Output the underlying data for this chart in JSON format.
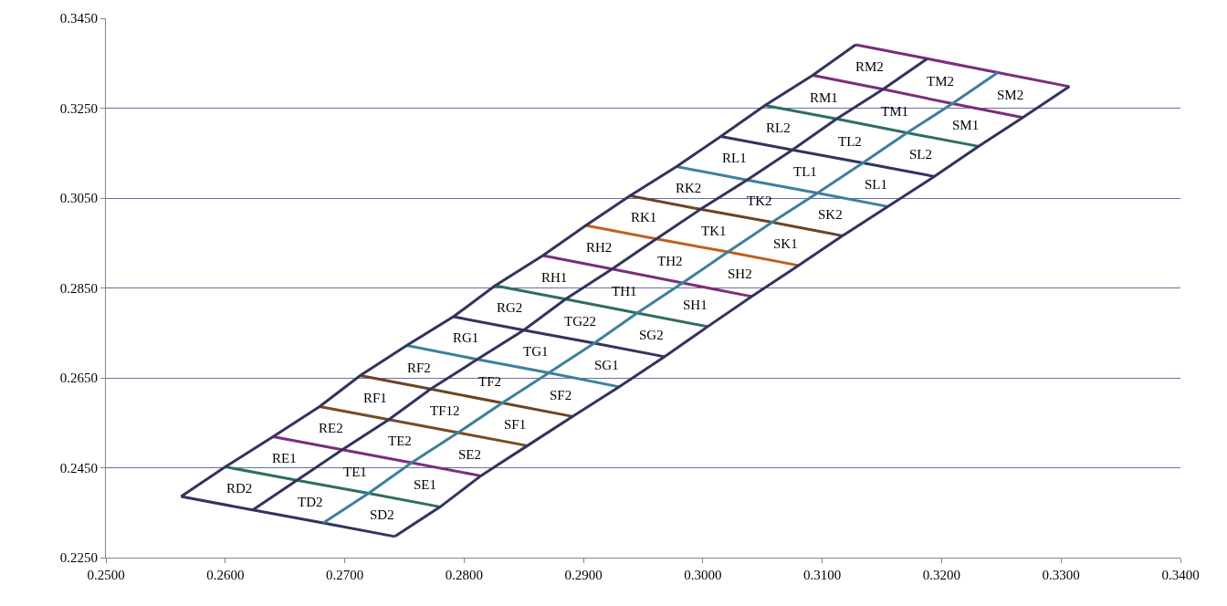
{
  "chart_data": {
    "type": "line",
    "xlim": [
      0.25,
      0.34
    ],
    "ylim": [
      0.225,
      0.345
    ],
    "xticks": [
      {
        "value": 0.25,
        "label": "0.2500"
      },
      {
        "value": 0.26,
        "label": "0.2600"
      },
      {
        "value": 0.27,
        "label": "0.2700"
      },
      {
        "value": 0.28,
        "label": "0.2800"
      },
      {
        "value": 0.29,
        "label": "0.2900"
      },
      {
        "value": 0.3,
        "label": "0.3000"
      },
      {
        "value": 0.31,
        "label": "0.3100"
      },
      {
        "value": 0.32,
        "label": "0.3200"
      },
      {
        "value": 0.33,
        "label": "0.3300"
      },
      {
        "value": 0.34,
        "label": "0.3400"
      }
    ],
    "yticks": [
      {
        "value": 0.225,
        "label": "0.2250"
      },
      {
        "value": 0.245,
        "label": "0.2450"
      },
      {
        "value": 0.265,
        "label": "0.2650"
      },
      {
        "value": 0.285,
        "label": "0.2850"
      },
      {
        "value": 0.305,
        "label": "0.3050"
      },
      {
        "value": 0.325,
        "label": "0.3250"
      },
      {
        "value": 0.345,
        "label": "0.3450"
      }
    ],
    "grid": "y",
    "marker": "none",
    "line_style": "solid",
    "series": [
      {
        "color": "#33335f",
        "x": [
          0.2563,
          0.2623,
          0.2682,
          0.2742
        ],
        "values": [
          0.2386,
          0.2356,
          0.2327,
          0.2297
        ]
      },
      {
        "color": "#2e6e64",
        "x": [
          0.26,
          0.266,
          0.272,
          0.278
        ],
        "values": [
          0.2452,
          0.2422,
          0.2393,
          0.2363
        ]
      },
      {
        "color": "#7b2e7b",
        "x": [
          0.264,
          0.2698,
          0.2756,
          0.2814
        ],
        "values": [
          0.2519,
          0.249,
          0.2461,
          0.2432
        ]
      },
      {
        "color": "#7b4a22",
        "x": [
          0.2679,
          0.2737,
          0.2795,
          0.2853
        ],
        "values": [
          0.2586,
          0.2557,
          0.2528,
          0.2499
        ]
      },
      {
        "color": "#6b4425",
        "x": [
          0.2713,
          0.2772,
          0.2832,
          0.2891
        ],
        "values": [
          0.2655,
          0.2625,
          0.2594,
          0.2564
        ]
      },
      {
        "color": "#3f7f9f",
        "x": [
          0.2752,
          0.2811,
          0.2871,
          0.293
        ],
        "values": [
          0.2722,
          0.2691,
          0.2661,
          0.263
        ]
      },
      {
        "color": "#33335f",
        "x": [
          0.2791,
          0.285,
          0.2909,
          0.2968
        ],
        "values": [
          0.2786,
          0.2756,
          0.2727,
          0.2697
        ]
      },
      {
        "color": "#2e6e64",
        "x": [
          0.2826,
          0.2885,
          0.2945,
          0.3004
        ],
        "values": [
          0.2855,
          0.2825,
          0.2794,
          0.2764
        ]
      },
      {
        "color": "#7b2e7b",
        "x": [
          0.2866,
          0.2924,
          0.2983,
          0.3041
        ],
        "values": [
          0.2922,
          0.2892,
          0.2861,
          0.2831
        ]
      },
      {
        "color": "#c0601f",
        "x": [
          0.2902,
          0.2961,
          0.3021,
          0.308
        ],
        "values": [
          0.2989,
          0.2959,
          0.293,
          0.29
        ]
      },
      {
        "color": "#6b4425",
        "x": [
          0.2939,
          0.2998,
          0.3058,
          0.3117
        ],
        "values": [
          0.3055,
          0.3025,
          0.2996,
          0.2966
        ]
      },
      {
        "color": "#3f7f9f",
        "x": [
          0.2978,
          0.3037,
          0.3096,
          0.3155
        ],
        "values": [
          0.312,
          0.309,
          0.3061,
          0.3031
        ]
      },
      {
        "color": "#33335f",
        "x": [
          0.3015,
          0.3075,
          0.3134,
          0.3194
        ],
        "values": [
          0.3187,
          0.3157,
          0.3128,
          0.3098
        ]
      },
      {
        "color": "#2e6e64",
        "x": [
          0.3052,
          0.3112,
          0.3171,
          0.3231
        ],
        "values": [
          0.3256,
          0.3226,
          0.3195,
          0.3165
        ]
      },
      {
        "color": "#7b2e7b",
        "x": [
          0.3092,
          0.3151,
          0.3209,
          0.3268
        ],
        "values": [
          0.3323,
          0.3292,
          0.326,
          0.3229
        ]
      },
      {
        "color": "#7b2e7b",
        "x": [
          0.3128,
          0.3188,
          0.3247,
          0.3307
        ],
        "values": [
          0.3391,
          0.336,
          0.3329,
          0.3298
        ]
      },
      {
        "color": "#33335f",
        "x": [
          0.2563,
          0.26,
          0.264,
          0.2679,
          0.2713,
          0.2752,
          0.2791,
          0.2826,
          0.2866,
          0.2902,
          0.2939,
          0.2978,
          0.3015,
          0.3052,
          0.3092,
          0.3128
        ],
        "values": [
          0.2386,
          0.2452,
          0.2519,
          0.2586,
          0.2655,
          0.2722,
          0.2786,
          0.2855,
          0.2922,
          0.2989,
          0.3055,
          0.312,
          0.3187,
          0.3256,
          0.3323,
          0.3391
        ]
      },
      {
        "color": "#33335f",
        "x": [
          0.2623,
          0.266,
          0.2698,
          0.2737,
          0.2772,
          0.2811,
          0.285,
          0.2885,
          0.2924,
          0.2961,
          0.2998,
          0.3037,
          0.3075,
          0.3112,
          0.3151,
          0.3188
        ],
        "values": [
          0.2356,
          0.2422,
          0.249,
          0.2557,
          0.2625,
          0.2691,
          0.2756,
          0.2825,
          0.2892,
          0.2959,
          0.3025,
          0.309,
          0.3157,
          0.3226,
          0.3292,
          0.336
        ]
      },
      {
        "color": "#3f7f9f",
        "x": [
          0.2682,
          0.272,
          0.2756,
          0.2795,
          0.2832,
          0.2871,
          0.2909,
          0.2945,
          0.2983,
          0.3021,
          0.3058,
          0.3096,
          0.3134,
          0.3171,
          0.3209,
          0.3247
        ],
        "values": [
          0.2327,
          0.2393,
          0.2461,
          0.2528,
          0.2594,
          0.2661,
          0.2727,
          0.2794,
          0.2861,
          0.293,
          0.2996,
          0.3061,
          0.3128,
          0.3195,
          0.326,
          0.3329
        ]
      },
      {
        "color": "#33335f",
        "x": [
          0.2742,
          0.278,
          0.2814,
          0.2853,
          0.2891,
          0.293,
          0.2968,
          0.3004,
          0.3041,
          0.308,
          0.3117,
          0.3155,
          0.3194,
          0.3231,
          0.3268,
          0.3307
        ],
        "values": [
          0.2297,
          0.2363,
          0.2432,
          0.2499,
          0.2564,
          0.263,
          0.2697,
          0.2764,
          0.2831,
          0.29,
          0.2966,
          0.3031,
          0.3098,
          0.3165,
          0.3229,
          0.3298
        ]
      }
    ],
    "annotations": [
      "RD2",
      "TD2",
      "SD2",
      "RE1",
      "TE1",
      "SE1",
      "RE2",
      "TE2",
      "SE2",
      "RF1",
      "TF12",
      "SF1",
      "RF2",
      "TF2",
      "SF2",
      "RG1",
      "TG1",
      "SG1",
      "RG2",
      "TG22",
      "SG2",
      "RH1",
      "TH1",
      "SH1",
      "RH2",
      "TH2",
      "SH2",
      "RK1",
      "TK1",
      "SK1",
      "RK2",
      "TK2",
      "SK2",
      "RL1",
      "TL1",
      "SL1",
      "RL2",
      "TL2",
      "SL2",
      "RM1",
      "TM1",
      "SM1",
      "RM2",
      "TM2",
      "SM2"
    ]
  }
}
